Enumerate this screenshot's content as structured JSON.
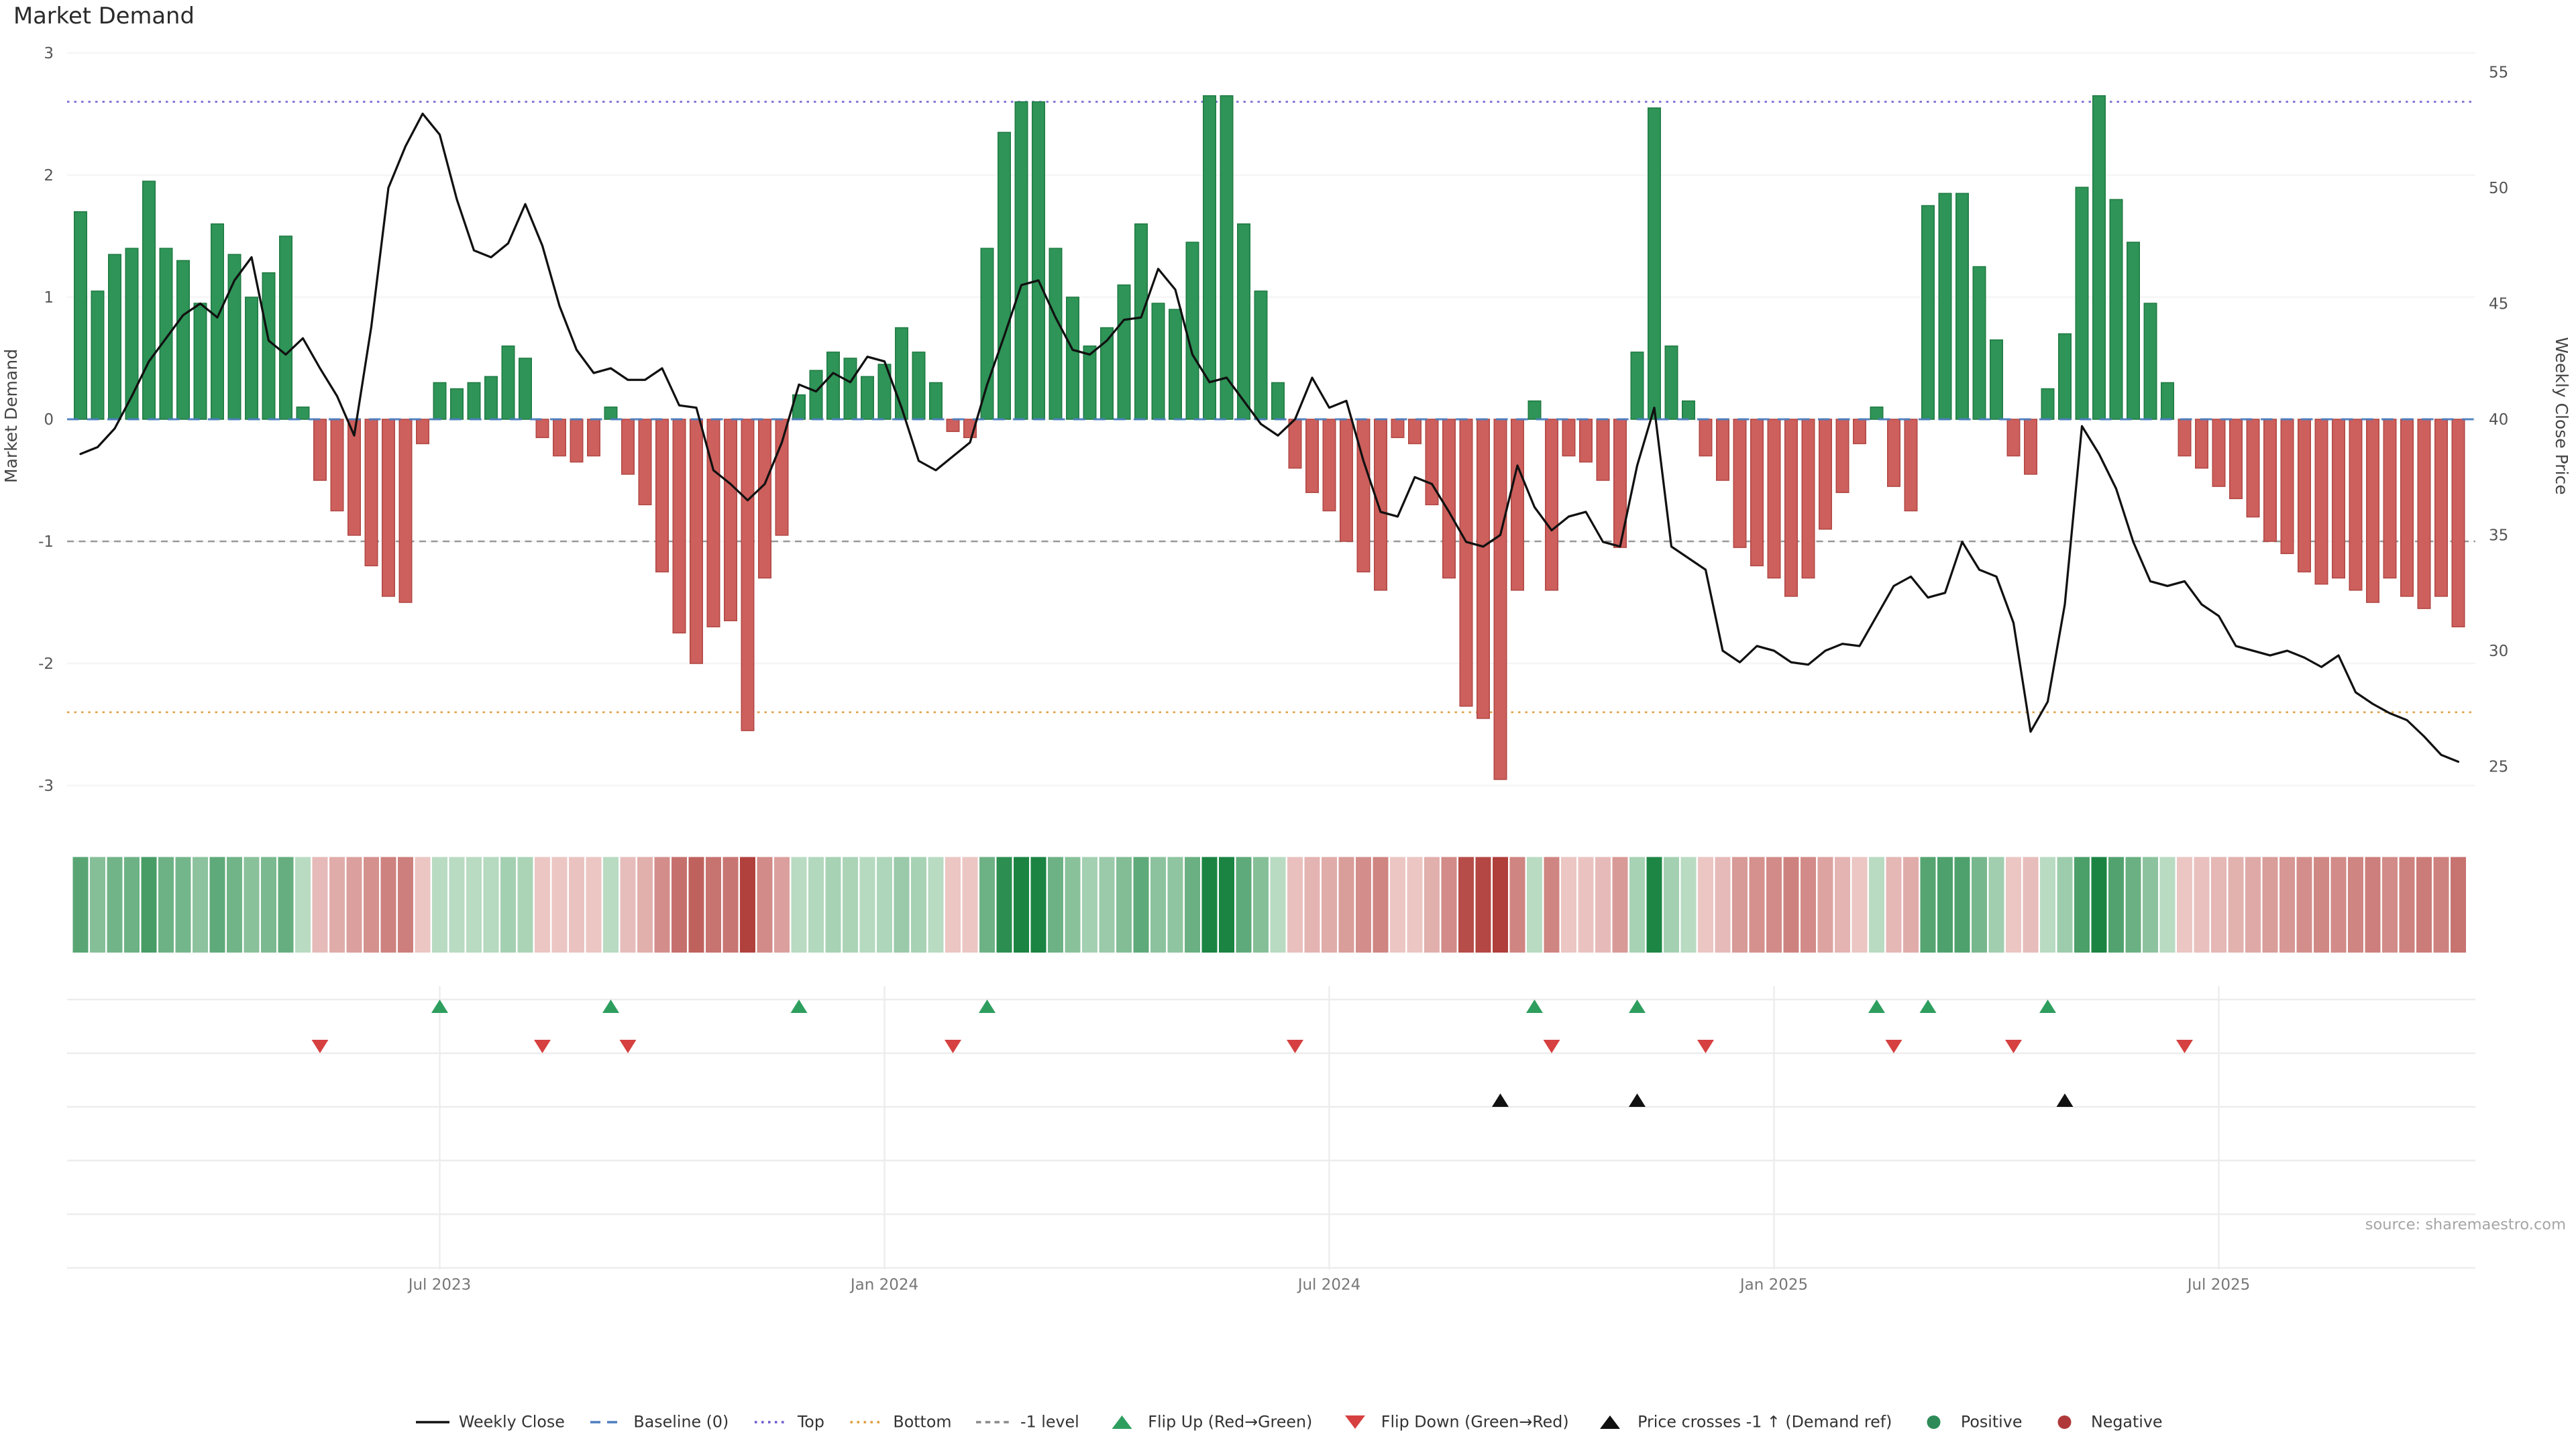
{
  "title": "Market Demand",
  "source": "source: sharemaestro.com",
  "axes": {
    "left_label": "Market Demand",
    "right_label": "Weekly Close Price",
    "left_ticks": [
      3,
      2,
      1,
      0,
      -1,
      -2,
      -3
    ],
    "right_ticks": [
      55,
      50,
      45,
      40,
      35,
      30,
      25
    ],
    "x_ticks": [
      {
        "index": 21,
        "label": "Jul 2023"
      },
      {
        "index": 47,
        "label": "Jan 2024"
      },
      {
        "index": 73,
        "label": "Jul 2024"
      },
      {
        "index": 99,
        "label": "Jan 2025"
      },
      {
        "index": 125,
        "label": "Jul 2025"
      }
    ]
  },
  "colors": {
    "positive": "#2e9457",
    "positive_edge": "#1f7a43",
    "negative": "#cd5f5c",
    "negative_edge": "#b04743",
    "price_line": "#111111",
    "baseline": "#4d7ebf",
    "top": "#6a5acd",
    "bottom": "#e09c3c",
    "minus_one": "#8a8a8a",
    "flip_up": "#2e9e5e",
    "flip_down": "#d64040",
    "price_cross": "#111111",
    "grid": "#ededed",
    "heat_pos_light": [
      205,
      231,
      211
    ],
    "heat_pos_dark": [
      27,
      132,
      66
    ],
    "heat_neg_light": [
      243,
      216,
      214
    ],
    "heat_neg_dark": [
      176,
      62,
      58
    ]
  },
  "chart_data": {
    "type": "combo-bar-line",
    "title": "Market Demand",
    "x": {
      "unit": "week",
      "n_points": 140,
      "ticks": [
        {
          "index": 21,
          "label": "Jul 2023"
        },
        {
          "index": 47,
          "label": "Jan 2024"
        },
        {
          "index": 73,
          "label": "Jul 2024"
        },
        {
          "index": 99,
          "label": "Jan 2025"
        },
        {
          "index": 125,
          "label": "Jul 2025"
        }
      ]
    },
    "left_axis": {
      "label": "Market Demand",
      "range": [
        -3.2,
        3.2
      ],
      "ticks": [
        3,
        2,
        1,
        0,
        -1,
        -2,
        -3
      ]
    },
    "right_axis": {
      "label": "Weekly Close Price",
      "range": [
        24,
        56
      ],
      "ticks": [
        55,
        50,
        45,
        40,
        35,
        30,
        25
      ]
    },
    "series": [
      {
        "name": "Market Demand",
        "type": "bar",
        "axis": "left",
        "values": [
          1.7,
          1.05,
          1.35,
          1.4,
          1.95,
          1.4,
          1.3,
          0.95,
          1.6,
          1.35,
          1.0,
          1.2,
          1.5,
          0.1,
          -0.5,
          -0.75,
          -0.95,
          -1.2,
          -1.45,
          -1.5,
          -0.2,
          0.3,
          0.25,
          0.3,
          0.35,
          0.6,
          0.5,
          -0.15,
          -0.3,
          -0.35,
          -0.3,
          0.1,
          -0.45,
          -0.7,
          -1.25,
          -1.75,
          -2.0,
          -1.7,
          -1.65,
          -2.55,
          -1.3,
          -0.95,
          0.2,
          0.4,
          0.55,
          0.5,
          0.35,
          0.45,
          0.75,
          0.55,
          0.3,
          -0.1,
          -0.15,
          1.4,
          2.35,
          2.6,
          2.6,
          1.4,
          1.0,
          0.6,
          0.75,
          1.1,
          1.6,
          0.95,
          0.9,
          1.45,
          2.65,
          2.65,
          1.6,
          1.05,
          0.3,
          -0.4,
          -0.6,
          -0.75,
          -1.0,
          -1.25,
          -1.4,
          -0.15,
          -0.2,
          -0.7,
          -1.3,
          -2.35,
          -2.45,
          -2.95,
          -1.4,
          0.15,
          -1.4,
          -0.3,
          -0.35,
          -0.5,
          -1.05,
          0.55,
          2.55,
          0.6,
          0.15,
          -0.3,
          -0.5,
          -1.05,
          -1.2,
          -1.3,
          -1.45,
          -1.3,
          -0.9,
          -0.6,
          -0.2,
          0.1,
          -0.55,
          -0.75,
          1.75,
          1.85,
          1.85,
          1.25,
          0.65,
          -0.3,
          -0.45,
          0.25,
          0.7,
          1.9,
          2.65,
          1.8,
          1.45,
          0.95,
          0.3,
          -0.3,
          -0.4,
          -0.55,
          -0.65,
          -0.8,
          -1.0,
          -1.1,
          -1.25,
          -1.35,
          -1.3,
          -1.4,
          -1.5,
          -1.3,
          -1.45,
          -1.55,
          -1.45,
          -1.7
        ]
      },
      {
        "name": "Weekly Close",
        "type": "line",
        "axis": "right",
        "values": [
          38.5,
          38.8,
          39.6,
          41.0,
          42.5,
          43.5,
          44.5,
          45.0,
          44.4,
          46.0,
          47.0,
          43.4,
          42.8,
          43.5,
          42.2,
          41.0,
          39.3,
          44.0,
          50.0,
          51.8,
          53.2,
          52.3,
          49.5,
          47.3,
          47.0,
          47.6,
          49.3,
          47.5,
          44.9,
          43.0,
          42.0,
          42.2,
          41.7,
          41.7,
          42.2,
          40.6,
          40.5,
          37.8,
          37.2,
          36.5,
          37.2,
          39.0,
          41.5,
          41.2,
          42.0,
          41.6,
          42.7,
          42.5,
          40.5,
          38.2,
          37.8,
          38.4,
          39.0,
          41.5,
          43.6,
          45.8,
          46.0,
          44.4,
          43.0,
          42.8,
          43.4,
          44.3,
          44.4,
          46.5,
          45.6,
          42.8,
          41.6,
          41.8,
          40.8,
          39.8,
          39.3,
          40.0,
          41.8,
          40.5,
          40.8,
          38.2,
          36.0,
          35.8,
          37.5,
          37.2,
          36.0,
          34.7,
          34.5,
          35.0,
          38.0,
          36.2,
          35.2,
          35.8,
          36.0,
          34.7,
          34.5,
          38.0,
          40.5,
          34.5,
          34.0,
          33.5,
          30.0,
          29.5,
          30.2,
          30.0,
          29.5,
          29.4,
          30.0,
          30.3,
          30.2,
          31.5,
          32.8,
          33.2,
          32.3,
          32.5,
          34.7,
          33.5,
          33.2,
          31.2,
          26.5,
          27.8,
          32.0,
          39.7,
          38.5,
          37.0,
          34.7,
          33.0,
          32.8,
          33.0,
          32.0,
          31.5,
          30.2,
          30.0,
          29.8,
          30.0,
          29.7,
          29.3,
          29.8,
          28.2,
          27.7,
          27.3,
          27.0,
          26.3,
          25.5,
          25.2
        ]
      }
    ],
    "reference_lines": [
      {
        "name": "Baseline (0)",
        "value": 0,
        "axis": "left",
        "style": "dashed",
        "color": "#4d7ebf"
      },
      {
        "name": "Top",
        "value": 2.6,
        "axis": "left",
        "style": "dotted",
        "color": "#6a5acd"
      },
      {
        "name": "Bottom",
        "value": -2.4,
        "axis": "left",
        "style": "dotted",
        "color": "#e09c3c"
      },
      {
        "name": "-1 level",
        "value": -1,
        "axis": "left",
        "style": "dashed",
        "color": "#8a8a8a"
      }
    ],
    "markers": {
      "flip_up": {
        "label": "Flip Up (Red→Green)",
        "indices": [
          21,
          31,
          42,
          53,
          85,
          91,
          105,
          108,
          115
        ]
      },
      "flip_down": {
        "label": "Flip Down (Green→Red)",
        "indices": [
          14,
          27,
          32,
          51,
          71,
          86,
          95,
          106,
          113,
          123
        ]
      },
      "price_cross": {
        "label": "Price crosses -1 ↑ (Demand ref)",
        "indices": [
          83,
          91,
          116
        ]
      }
    },
    "heatmap": {
      "description": "Weekly demand intensity strip; green = positive demand, red = negative demand, darker = stronger."
    }
  },
  "legend": {
    "items": [
      {
        "symbol": "solid",
        "color": "#111111",
        "label": "Weekly Close"
      },
      {
        "symbol": "dash",
        "color": "#4d7ebf",
        "label": "Baseline (0)"
      },
      {
        "symbol": "dotted",
        "color": "#6a5acd",
        "label": "Top"
      },
      {
        "symbol": "dotted",
        "color": "#e09c3c",
        "label": "Bottom"
      },
      {
        "symbol": "fine-dash",
        "color": "#8a8a8a",
        "label": "-1 level"
      },
      {
        "symbol": "tri-up",
        "color": "#2e9e5e",
        "label": "Flip Up (Red→Green)"
      },
      {
        "symbol": "tri-down",
        "color": "#d64040",
        "label": "Flip Down (Green→Red)"
      },
      {
        "symbol": "tri-up",
        "color": "#111111",
        "label": "Price crosses -1 ↑ (Demand ref)"
      },
      {
        "symbol": "circle",
        "color": "#2e8b57",
        "label": "Positive"
      },
      {
        "symbol": "circle",
        "color": "#b03a3a",
        "label": "Negative"
      }
    ]
  }
}
